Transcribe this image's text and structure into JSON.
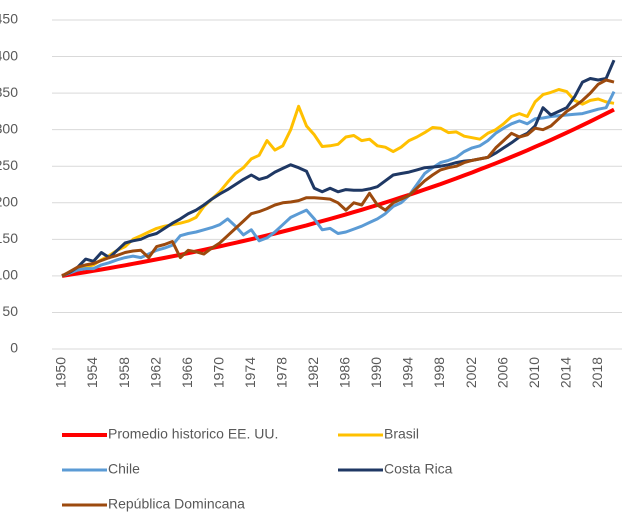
{
  "chart_data": {
    "type": "line",
    "x": [
      1950,
      1951,
      1952,
      1953,
      1954,
      1955,
      1956,
      1957,
      1958,
      1959,
      1960,
      1961,
      1962,
      1963,
      1964,
      1965,
      1966,
      1967,
      1968,
      1969,
      1970,
      1971,
      1972,
      1973,
      1974,
      1975,
      1976,
      1977,
      1978,
      1979,
      1980,
      1981,
      1982,
      1983,
      1984,
      1985,
      1986,
      1987,
      1988,
      1989,
      1990,
      1991,
      1992,
      1993,
      1994,
      1995,
      1996,
      1997,
      1998,
      1999,
      2000,
      2001,
      2002,
      2003,
      2004,
      2005,
      2006,
      2007,
      2008,
      2009,
      2010,
      2011,
      2012,
      2013,
      2014,
      2015,
      2016,
      2017,
      2018,
      2019,
      2020
    ],
    "xlim": [
      1950,
      2020
    ],
    "xticks": [
      1950,
      1954,
      1958,
      1962,
      1966,
      1970,
      1974,
      1978,
      1982,
      1986,
      1990,
      1994,
      1998,
      2002,
      2006,
      2010,
      2014,
      2018
    ],
    "ylim": [
      0,
      450
    ],
    "yticks": [
      0,
      50,
      100,
      150,
      200,
      250,
      300,
      350,
      400,
      450
    ],
    "grid": true,
    "legend": "bottom",
    "series": [
      {
        "name": "Promedio historico EE. UU.",
        "color": "#ff0000",
        "values": [
          100,
          101.7,
          103.4,
          105.2,
          107.0,
          108.8,
          110.7,
          112.6,
          114.5,
          116.5,
          118.5,
          120.5,
          122.5,
          124.6,
          126.8,
          128.9,
          131.1,
          133.4,
          135.7,
          138.0,
          140.4,
          142.8,
          145.2,
          147.7,
          150.2,
          152.8,
          155.4,
          158.0,
          160.7,
          163.5,
          166.3,
          169.1,
          172.0,
          175.0,
          178.0,
          181.0,
          184.1,
          187.2,
          190.4,
          193.7,
          197.0,
          200.4,
          203.8,
          207.3,
          210.8,
          214.4,
          218.1,
          221.8,
          225.6,
          229.5,
          233.4,
          237.4,
          241.4,
          245.6,
          249.8,
          254.0,
          258.4,
          262.8,
          267.3,
          271.8,
          276.5,
          281.2,
          286.0,
          290.9,
          295.9,
          300.9,
          306.1,
          311.3,
          316.6,
          322.0,
          327.5
        ]
      },
      {
        "name": "Brasil",
        "color": "#ffc000",
        "values": [
          100,
          105,
          110,
          112,
          115,
          122,
          128,
          135,
          140,
          150,
          155,
          160,
          165,
          168,
          170,
          172,
          175,
          180,
          195,
          205,
          215,
          228,
          240,
          248,
          260,
          265,
          285,
          272,
          278,
          300,
          332,
          305,
          293,
          277,
          278,
          280,
          290,
          292,
          285,
          287,
          278,
          276,
          270,
          276,
          285,
          290,
          296,
          303,
          302,
          296,
          297,
          291,
          289,
          287,
          295,
          300,
          308,
          318,
          322,
          318,
          338,
          348,
          351,
          355,
          352,
          340,
          335,
          340,
          342,
          338,
          336
        ]
      },
      {
        "name": "Chile",
        "color": "#5b9bd5",
        "values": [
          100,
          104,
          108,
          110,
          110,
          115,
          118,
          122,
          125,
          127,
          125,
          130,
          135,
          138,
          142,
          155,
          158,
          160,
          163,
          166,
          170,
          178,
          168,
          156,
          163,
          148,
          152,
          160,
          170,
          180,
          185,
          190,
          178,
          163,
          165,
          158,
          160,
          164,
          168,
          173,
          178,
          185,
          195,
          200,
          210,
          225,
          240,
          248,
          255,
          258,
          262,
          270,
          275,
          278,
          285,
          295,
          302,
          308,
          312,
          308,
          315,
          316,
          318,
          319,
          320,
          321,
          322,
          325,
          328,
          330,
          352
        ]
      },
      {
        "name": "Costa Rica",
        "color": "#1f3864",
        "values": [
          100,
          105,
          112,
          123,
          120,
          132,
          125,
          135,
          145,
          148,
          150,
          155,
          158,
          165,
          172,
          178,
          185,
          190,
          197,
          205,
          212,
          218,
          225,
          232,
          238,
          232,
          235,
          242,
          247,
          252,
          248,
          243,
          220,
          215,
          220,
          215,
          218,
          217,
          217,
          219,
          222,
          230,
          238,
          240,
          242,
          245,
          248,
          249,
          250,
          252,
          255,
          257,
          258,
          260,
          262,
          268,
          275,
          282,
          290,
          295,
          305,
          330,
          320,
          325,
          330,
          345,
          365,
          370,
          368,
          370,
          395
        ]
      },
      {
        "name": "República Domincana",
        "color": "#9c4a0e",
        "values": [
          100,
          106,
          112,
          115,
          117,
          121,
          125,
          128,
          132,
          134,
          135,
          125,
          140,
          143,
          147,
          125,
          135,
          133,
          130,
          138,
          145,
          155,
          165,
          175,
          185,
          188,
          192,
          197,
          200,
          201,
          203,
          207,
          207,
          206,
          205,
          200,
          190,
          200,
          197,
          213,
          197,
          190,
          200,
          205,
          210,
          220,
          230,
          238,
          245,
          248,
          250,
          255,
          258,
          260,
          262,
          275,
          285,
          295,
          290,
          293,
          302,
          300,
          305,
          315,
          325,
          332,
          340,
          350,
          362,
          368,
          365
        ]
      }
    ]
  }
}
